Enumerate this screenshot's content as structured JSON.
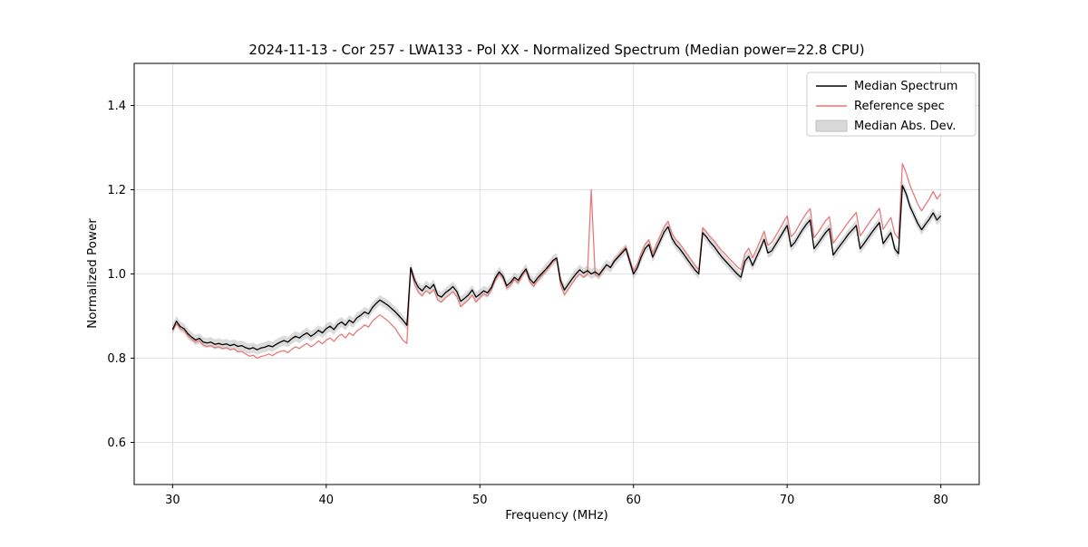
{
  "chart_data": {
    "type": "line",
    "title": "2024-11-13 - Cor 257 - LWA133 - Pol XX - Normalized Spectrum (Median power=22.8 CPU)",
    "xlabel": "Frequency (MHz)",
    "ylabel": "Normalized Power",
    "grid": true,
    "legend_position": "upper right",
    "xlim": [
      27.5,
      82.5
    ],
    "ylim": [
      0.5,
      1.5
    ],
    "x_ticks": [
      30,
      40,
      50,
      60,
      70,
      80
    ],
    "y_ticks": [
      0.6,
      0.8,
      1.0,
      1.2,
      1.4
    ],
    "x_tick_labels": [
      "30",
      "40",
      "50",
      "60",
      "70",
      "80"
    ],
    "y_tick_labels": [
      "0.6",
      "0.8",
      "1.0",
      "1.2",
      "1.4"
    ],
    "x_start": 30,
    "x_step": 0.25,
    "series": [
      {
        "name": "Median Spectrum",
        "color": "#000000",
        "values": [
          0.868,
          0.888,
          0.875,
          0.87,
          0.858,
          0.85,
          0.843,
          0.847,
          0.838,
          0.836,
          0.838,
          0.833,
          0.835,
          0.832,
          0.834,
          0.83,
          0.833,
          0.828,
          0.83,
          0.825,
          0.822,
          0.825,
          0.82,
          0.824,
          0.826,
          0.83,
          0.827,
          0.833,
          0.838,
          0.842,
          0.838,
          0.846,
          0.852,
          0.848,
          0.855,
          0.86,
          0.852,
          0.858,
          0.866,
          0.86,
          0.87,
          0.876,
          0.868,
          0.88,
          0.886,
          0.878,
          0.89,
          0.884,
          0.896,
          0.902,
          0.91,
          0.905,
          0.92,
          0.93,
          0.938,
          0.932,
          0.926,
          0.918,
          0.91,
          0.9,
          0.89,
          0.878,
          1.015,
          0.985,
          0.968,
          0.96,
          0.972,
          0.965,
          0.975,
          0.95,
          0.945,
          0.955,
          0.962,
          0.97,
          0.958,
          0.935,
          0.942,
          0.95,
          0.962,
          0.945,
          0.952,
          0.96,
          0.955,
          0.968,
          0.99,
          1.005,
          0.995,
          0.972,
          0.98,
          0.992,
          0.985,
          1.0,
          1.012,
          0.988,
          0.978,
          0.99,
          1.0,
          1.01,
          1.02,
          1.032,
          1.038,
          0.985,
          0.962,
          0.975,
          0.988,
          1.0,
          1.01,
          1.002,
          1.008,
          1.0,
          1.005,
          0.998,
          1.01,
          1.022,
          1.015,
          1.03,
          1.04,
          1.05,
          1.06,
          1.03,
          1.0,
          1.015,
          1.04,
          1.06,
          1.07,
          1.04,
          1.06,
          1.08,
          1.1,
          1.112,
          1.085,
          1.07,
          1.06,
          1.048,
          1.035,
          1.022,
          1.01,
          1.0,
          1.098,
          1.088,
          1.075,
          1.065,
          1.052,
          1.04,
          1.03,
          1.02,
          1.01,
          1.0,
          0.992,
          1.03,
          1.042,
          1.02,
          1.04,
          1.06,
          1.082,
          1.05,
          1.055,
          1.07,
          1.085,
          1.1,
          1.115,
          1.065,
          1.075,
          1.09,
          1.105,
          1.118,
          1.128,
          1.06,
          1.072,
          1.085,
          1.098,
          1.108,
          1.045,
          1.058,
          1.07,
          1.082,
          1.095,
          1.105,
          1.115,
          1.06,
          1.072,
          1.085,
          1.098,
          1.11,
          1.122,
          1.072,
          1.085,
          1.098,
          1.06,
          1.048,
          1.21,
          1.19,
          1.16,
          1.14,
          1.12,
          1.105,
          1.118,
          1.13,
          1.145,
          1.128,
          1.138
        ]
      },
      {
        "name": "Reference spec",
        "color": "#e87272",
        "values": [
          0.865,
          0.882,
          0.87,
          0.866,
          0.853,
          0.845,
          0.838,
          0.841,
          0.831,
          0.828,
          0.83,
          0.825,
          0.827,
          0.823,
          0.825,
          0.82,
          0.822,
          0.815,
          0.816,
          0.81,
          0.805,
          0.807,
          0.8,
          0.804,
          0.806,
          0.81,
          0.806,
          0.812,
          0.816,
          0.818,
          0.813,
          0.821,
          0.827,
          0.823,
          0.83,
          0.835,
          0.827,
          0.833,
          0.841,
          0.834,
          0.843,
          0.848,
          0.84,
          0.851,
          0.857,
          0.848,
          0.86,
          0.854,
          0.865,
          0.871,
          0.879,
          0.874,
          0.888,
          0.896,
          0.903,
          0.896,
          0.889,
          0.88,
          0.87,
          0.856,
          0.842,
          0.835,
          1.012,
          0.975,
          0.956,
          0.948,
          0.96,
          0.953,
          0.963,
          0.938,
          0.933,
          0.943,
          0.95,
          0.958,
          0.946,
          0.922,
          0.93,
          0.938,
          0.95,
          0.933,
          0.944,
          0.953,
          0.948,
          0.962,
          0.985,
          1.0,
          0.99,
          0.966,
          0.974,
          0.987,
          0.979,
          0.996,
          1.008,
          0.982,
          0.971,
          0.984,
          0.995,
          1.005,
          1.016,
          1.028,
          1.035,
          0.975,
          0.95,
          0.963,
          0.977,
          0.99,
          1.0,
          0.992,
          0.999,
          1.2,
          0.998,
          0.994,
          1.008,
          1.022,
          1.016,
          1.032,
          1.043,
          1.054,
          1.065,
          1.036,
          1.008,
          1.024,
          1.05,
          1.07,
          1.081,
          1.05,
          1.071,
          1.092,
          1.112,
          1.125,
          1.097,
          1.082,
          1.072,
          1.06,
          1.047,
          1.034,
          1.021,
          1.01,
          1.11,
          1.1,
          1.088,
          1.079,
          1.066,
          1.055,
          1.046,
          1.036,
          1.027,
          1.017,
          1.01,
          1.048,
          1.061,
          1.038,
          1.058,
          1.079,
          1.101,
          1.068,
          1.075,
          1.09,
          1.106,
          1.122,
          1.138,
          1.088,
          1.098,
          1.114,
          1.13,
          1.144,
          1.155,
          1.086,
          1.098,
          1.112,
          1.126,
          1.136,
          1.073,
          1.086,
          1.098,
          1.111,
          1.124,
          1.135,
          1.146,
          1.09,
          1.103,
          1.117,
          1.13,
          1.143,
          1.156,
          1.106,
          1.12,
          1.134,
          1.096,
          1.084,
          1.262,
          1.24,
          1.21,
          1.188,
          1.166,
          1.15,
          1.164,
          1.178,
          1.196,
          1.178,
          1.19
        ]
      },
      {
        "name": "Median Abs. Dev.",
        "color": "#999999",
        "type": "band",
        "band_around": "Median Spectrum",
        "halfwidth": 0.012
      }
    ]
  }
}
